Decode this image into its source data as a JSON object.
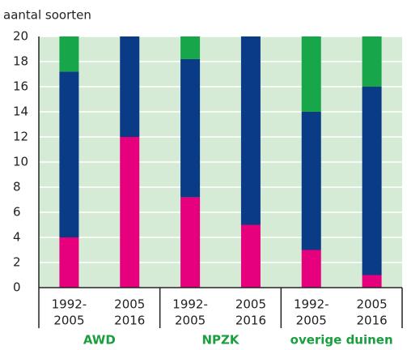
{
  "chart_data": {
    "type": "stacked-bar",
    "y_label": "aantal soorten",
    "categories": [
      [
        "1992-",
        "2005"
      ],
      [
        "2005",
        "2016"
      ],
      [
        "1992-",
        "2005"
      ],
      [
        "2005",
        "2016"
      ],
      [
        "1992-",
        "2005"
      ],
      [
        "2005",
        "2016"
      ]
    ],
    "groups": [
      "AWD",
      "NPZK",
      "overige duinen"
    ],
    "series": [
      {
        "color": "#e6007e",
        "values": [
          4,
          12,
          7.2,
          5,
          3,
          1
        ]
      },
      {
        "color": "#0a3b87",
        "values": [
          13.2,
          8,
          11,
          15,
          11,
          15
        ]
      },
      {
        "color": "#17a64a",
        "values": [
          2.8,
          0,
          1.8,
          0,
          6,
          4
        ]
      }
    ],
    "ylim": [
      0,
      20
    ],
    "yticks": [
      0,
      2,
      4,
      6,
      8,
      10,
      12,
      14,
      16,
      18,
      20
    ],
    "grid": true,
    "background": "#d6ebd6",
    "group_label_color": "#1a9e3f"
  }
}
